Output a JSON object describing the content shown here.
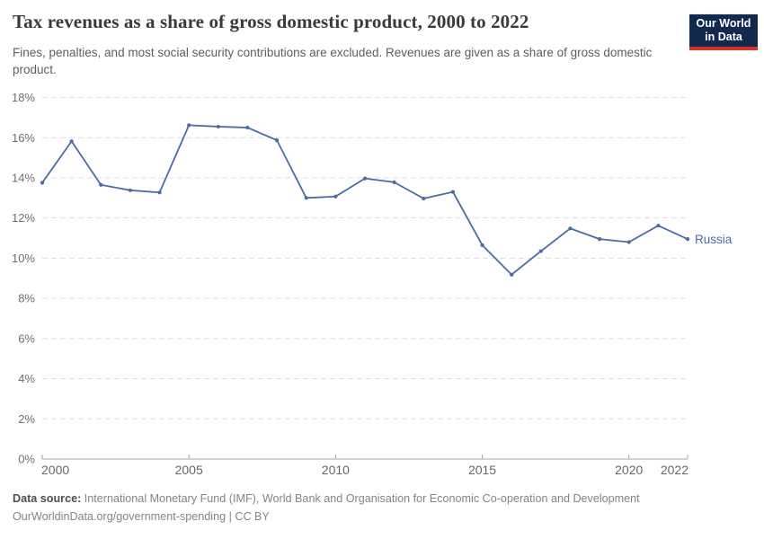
{
  "header": {
    "title": "Tax revenues as a share of gross domestic product, 2000 to 2022",
    "subtitle": "Fines, penalties, and most social security contributions are excluded. Revenues are given as a share of gross domestic product."
  },
  "logo": {
    "line1": "Our World",
    "line2": "in Data",
    "bg_color": "#12294d",
    "accent_color": "#d0342a"
  },
  "chart_data": {
    "type": "line",
    "title": "Tax revenues as a share of gross domestic product, 2000 to 2022",
    "x": [
      2000,
      2001,
      2002,
      2003,
      2004,
      2005,
      2006,
      2007,
      2008,
      2009,
      2010,
      2011,
      2012,
      2013,
      2014,
      2015,
      2016,
      2017,
      2018,
      2019,
      2020,
      2021,
      2022
    ],
    "series": [
      {
        "name": "Russia",
        "color": "#4d6ba3",
        "values": [
          13.75,
          15.82,
          13.65,
          13.38,
          13.27,
          16.62,
          16.55,
          16.5,
          15.87,
          13.0,
          13.07,
          13.97,
          13.78,
          12.97,
          13.3,
          10.65,
          9.18,
          10.35,
          11.48,
          10.95,
          10.8,
          11.62,
          10.95
        ]
      }
    ],
    "xlabel": "",
    "ylabel": "",
    "ylim": [
      0,
      18
    ],
    "y_tick_values": [
      0,
      2,
      4,
      6,
      8,
      10,
      12,
      14,
      16,
      18
    ],
    "y_tick_labels": [
      "0%",
      "2%",
      "4%",
      "6%",
      "8%",
      "10%",
      "12%",
      "14%",
      "16%",
      "18%"
    ],
    "x_tick_values": [
      2000,
      2005,
      2010,
      2015,
      2020,
      2022
    ],
    "x_tick_labels": [
      "2000",
      "2005",
      "2010",
      "2015",
      "2020",
      "2022"
    ],
    "grid": "horizontal-dashed",
    "legend_position": "end-of-line",
    "grid_color": "#dddddd",
    "axis_color": "#a6a6a6",
    "y_tick_label_color": "#6e6e6e",
    "x_tick_label_color": "#666666"
  },
  "footer": {
    "source_label": "Data source:",
    "source_text": "International Monetary Fund (IMF), World Bank and Organisation for Economic Co-operation and Development",
    "link_text": "OurWorldinData.org/government-spending | CC BY"
  }
}
